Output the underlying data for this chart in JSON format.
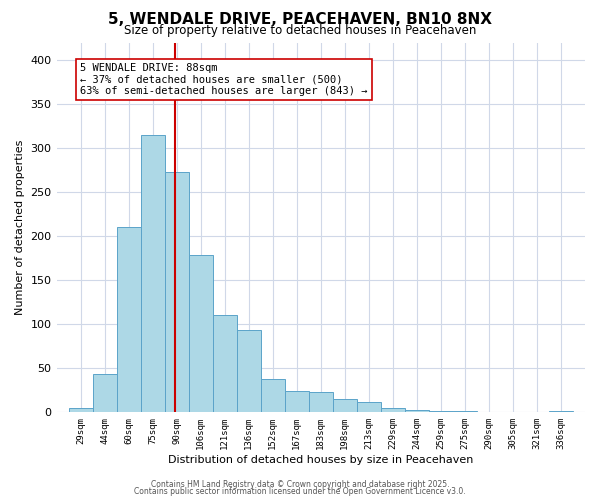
{
  "title": "5, WENDALE DRIVE, PEACEHAVEN, BN10 8NX",
  "subtitle": "Size of property relative to detached houses in Peacehaven",
  "xlabel": "Distribution of detached houses by size in Peacehaven",
  "ylabel": "Number of detached properties",
  "bar_left_edges": [
    21.5,
    36.5,
    51.5,
    66.5,
    81.5,
    96.5,
    111.5,
    126.5,
    141.5,
    156.5,
    171.5,
    186.5,
    201.5,
    216.5,
    231.5,
    246.5,
    261.5,
    276.5,
    291.5,
    306.5,
    321.5
  ],
  "bar_heights": [
    5,
    44,
    211,
    315,
    273,
    179,
    110,
    93,
    38,
    24,
    23,
    15,
    12,
    5,
    3,
    1,
    1,
    0,
    0,
    0,
    2
  ],
  "bin_width": 15,
  "tick_labels": [
    "29sqm",
    "44sqm",
    "60sqm",
    "75sqm",
    "90sqm",
    "106sqm",
    "121sqm",
    "136sqm",
    "152sqm",
    "167sqm",
    "183sqm",
    "198sqm",
    "213sqm",
    "229sqm",
    "244sqm",
    "259sqm",
    "275sqm",
    "290sqm",
    "305sqm",
    "321sqm",
    "336sqm"
  ],
  "tick_positions": [
    21.5,
    36.5,
    51.5,
    66.5,
    81.5,
    96.5,
    111.5,
    126.5,
    141.5,
    156.5,
    171.5,
    186.5,
    201.5,
    216.5,
    231.5,
    246.5,
    261.5,
    276.5,
    291.5,
    306.5,
    321.5
  ],
  "bar_color": "#add8e6",
  "bar_edge_color": "#5ba3c9",
  "vline_x": 88,
  "vline_color": "#cc0000",
  "annotation_title": "5 WENDALE DRIVE: 88sqm",
  "annotation_line1": "← 37% of detached houses are smaller (500)",
  "annotation_line2": "63% of semi-detached houses are larger (843) →",
  "annotation_box_color": "#ffffff",
  "annotation_box_edge": "#cc0000",
  "ylim": [
    0,
    420
  ],
  "xlim": [
    14,
    344
  ],
  "footer1": "Contains HM Land Registry data © Crown copyright and database right 2025.",
  "footer2": "Contains public sector information licensed under the Open Government Licence v3.0.",
  "bg_color": "#ffffff",
  "grid_color": "#d0d8e8"
}
